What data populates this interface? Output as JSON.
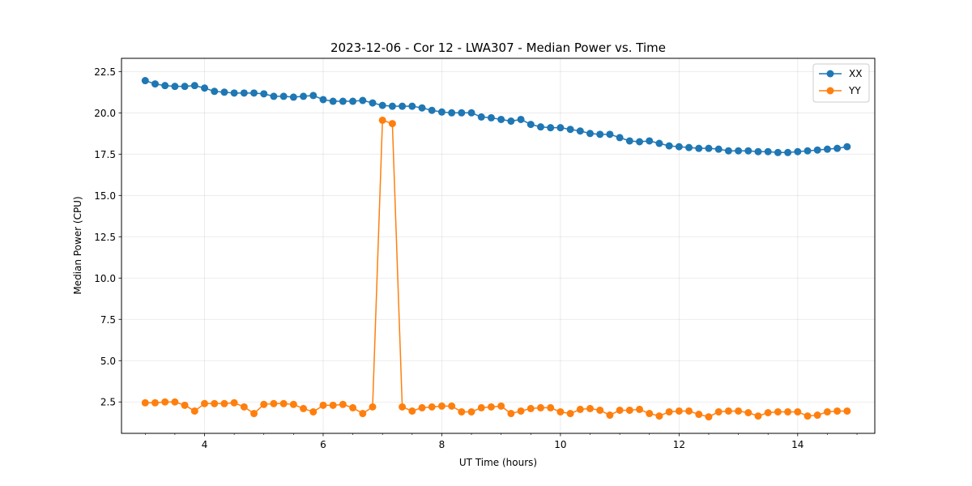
{
  "chart_data": {
    "type": "line",
    "title": "2023-12-06 - Cor 12 - LWA307 - Median Power vs. Time",
    "xlabel": "UT Time (hours)",
    "ylabel": "Median Power (CPU)",
    "xlim": [
      2.6,
      15.3
    ],
    "ylim": [
      0.6,
      23.3
    ],
    "x_ticks": [
      4,
      6,
      8,
      10,
      12,
      14
    ],
    "x_tick_labels": [
      "4",
      "6",
      "8",
      "10",
      "12",
      "14"
    ],
    "x_minor_step": 0.5,
    "y_ticks": [
      2.5,
      5.0,
      7.5,
      10.0,
      12.5,
      15.0,
      17.5,
      20.0,
      22.5
    ],
    "y_tick_labels": [
      "2.5",
      "5.0",
      "7.5",
      "10.0",
      "12.5",
      "15.0",
      "17.5",
      "20.0",
      "22.5"
    ],
    "grid": true,
    "legend_position": "top-right",
    "x": [
      3.0,
      3.1667,
      3.3333,
      3.5,
      3.6667,
      3.8333,
      4.0,
      4.1667,
      4.3333,
      4.5,
      4.6667,
      4.8333,
      5.0,
      5.1667,
      5.3333,
      5.5,
      5.6667,
      5.8333,
      6.0,
      6.1667,
      6.3333,
      6.5,
      6.6667,
      6.8333,
      7.0,
      7.1667,
      7.3333,
      7.5,
      7.6667,
      7.8333,
      8.0,
      8.1667,
      8.3333,
      8.5,
      8.6667,
      8.8333,
      9.0,
      9.1667,
      9.3333,
      9.5,
      9.6667,
      9.8333,
      10.0,
      10.1667,
      10.3333,
      10.5,
      10.6667,
      10.8333,
      11.0,
      11.1667,
      11.3333,
      11.5,
      11.6667,
      11.8333,
      12.0,
      12.1667,
      12.3333,
      12.5,
      12.6667,
      12.8333,
      13.0,
      13.1667,
      13.3333,
      13.5,
      13.6667,
      13.8333,
      14.0,
      14.1667,
      14.3333,
      14.5,
      14.6667,
      14.8333
    ],
    "series": [
      {
        "name": "XX",
        "color": "#1f77b4",
        "values": [
          21.95,
          21.75,
          21.65,
          21.6,
          21.6,
          21.65,
          21.5,
          21.3,
          21.25,
          21.2,
          21.2,
          21.2,
          21.15,
          21.0,
          21.0,
          20.95,
          21.0,
          21.05,
          20.8,
          20.7,
          20.7,
          20.7,
          20.75,
          20.6,
          20.45,
          20.4,
          20.4,
          20.4,
          20.3,
          20.15,
          20.05,
          20.0,
          20.0,
          20.0,
          19.75,
          19.7,
          19.6,
          19.5,
          19.6,
          19.3,
          19.15,
          19.1,
          19.1,
          19.0,
          18.9,
          18.75,
          18.7,
          18.7,
          18.5,
          18.3,
          18.25,
          18.3,
          18.15,
          18.0,
          17.95,
          17.9,
          17.85,
          17.85,
          17.8,
          17.7,
          17.7,
          17.7,
          17.65,
          17.65,
          17.6,
          17.6,
          17.65,
          17.7,
          17.75,
          17.8,
          17.85,
          17.95
        ]
      },
      {
        "name": "YY",
        "color": "#ff7f0e",
        "values": [
          2.45,
          2.45,
          2.5,
          2.5,
          2.3,
          1.95,
          2.4,
          2.4,
          2.4,
          2.45,
          2.2,
          1.8,
          2.35,
          2.4,
          2.4,
          2.35,
          2.1,
          1.9,
          2.3,
          2.3,
          2.35,
          2.15,
          1.8,
          2.2,
          19.55,
          19.35,
          2.2,
          1.95,
          2.15,
          2.2,
          2.25,
          2.25,
          1.9,
          1.9,
          2.15,
          2.2,
          2.25,
          1.8,
          1.95,
          2.1,
          2.15,
          2.15,
          1.9,
          1.8,
          2.05,
          2.1,
          2.0,
          1.7,
          2.0,
          2.0,
          2.05,
          1.8,
          1.65,
          1.9,
          1.95,
          1.95,
          1.75,
          1.6,
          1.9,
          1.95,
          1.95,
          1.85,
          1.65,
          1.85,
          1.9,
          1.9,
          1.9,
          1.65,
          1.7,
          1.9,
          1.95,
          1.95
        ]
      }
    ]
  }
}
